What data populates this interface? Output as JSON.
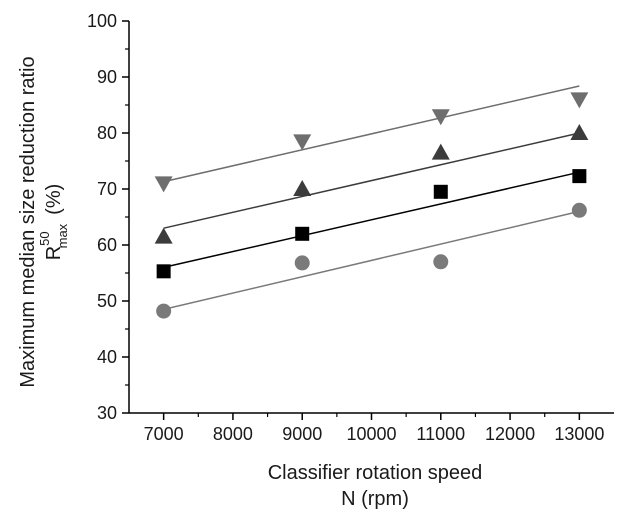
{
  "chart_data": {
    "type": "scatter",
    "xlabel": "Classifier rotation speed",
    "xlabel_line2": "N (rpm)",
    "ylabel": "Maximum median size reduction ratio",
    "ylabel_line2": {
      "base": "R",
      "sup": "50",
      "sub": "max",
      "unit": "(%)"
    },
    "xlim": [
      6500,
      13500
    ],
    "ylim": [
      30,
      100
    ],
    "xticks": [
      7000,
      8000,
      9000,
      10000,
      11000,
      12000,
      13000
    ],
    "yticks": [
      30,
      40,
      50,
      60,
      70,
      80,
      90,
      100
    ],
    "x": [
      7000,
      9000,
      11000,
      13000
    ],
    "series": [
      {
        "marker": "triangle-down",
        "color": "#6e6e6e",
        "values": [
          71,
          78.5,
          83,
          86
        ],
        "fit": [
          71.3,
          88.4
        ]
      },
      {
        "marker": "triangle-up",
        "color": "#3c3c3c",
        "values": [
          61.5,
          70,
          76.5,
          80
        ],
        "fit": [
          63,
          80
        ]
      },
      {
        "marker": "square",
        "color": "#000000",
        "values": [
          55.3,
          62,
          69.5,
          72.3
        ],
        "fit": [
          56,
          73
        ]
      },
      {
        "marker": "circle",
        "color": "#7a7a7a",
        "values": [
          48.2,
          56.8,
          57,
          66.2
        ],
        "fit": [
          48.5,
          66
        ]
      }
    ]
  }
}
